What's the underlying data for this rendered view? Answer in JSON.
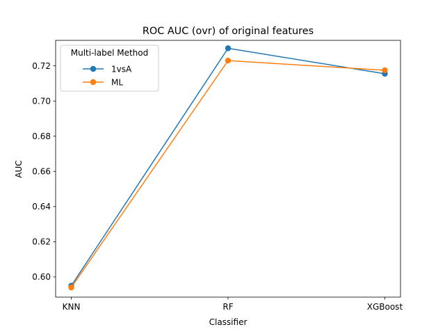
{
  "chart_data": {
    "type": "line",
    "title": "ROC AUC (ovr) of original features",
    "xlabel": "Classifier",
    "ylabel": "AUC",
    "categories": [
      "KNN",
      "RF",
      "XGBoost"
    ],
    "ylim": [
      0.5885,
      0.7345
    ],
    "yticks": [
      "0.60",
      "0.62",
      "0.64",
      "0.66",
      "0.68",
      "0.70",
      "0.72"
    ],
    "ytick_values": [
      0.6,
      0.62,
      0.64,
      0.66,
      0.68,
      0.7,
      0.72
    ],
    "grid": false,
    "legend": {
      "title": "Multi-label Method",
      "placement": "top-left"
    },
    "series": [
      {
        "name": "1vsA",
        "color": "#1f77b4",
        "values": [
          0.595,
          0.73,
          0.7155
        ]
      },
      {
        "name": "ML",
        "color": "#ff7f0e",
        "values": [
          0.594,
          0.723,
          0.7175
        ]
      }
    ]
  }
}
